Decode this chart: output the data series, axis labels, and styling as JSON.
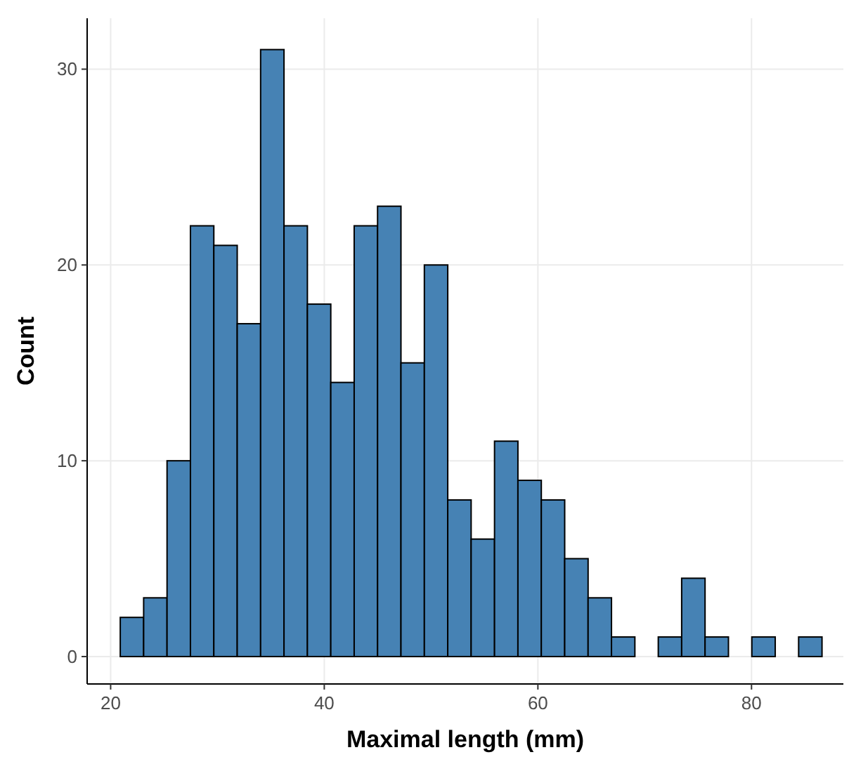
{
  "chart_data": {
    "type": "histogram",
    "xlabel": "Maximal length (mm)",
    "ylabel": "Count",
    "color": "#4682b4",
    "bins": [
      20.9,
      23.09,
      25.28,
      27.47,
      29.66,
      31.85,
      34.04,
      36.23,
      38.42,
      40.61,
      42.8,
      44.99,
      47.18,
      49.37,
      51.56,
      53.75,
      55.94,
      58.13,
      60.32,
      62.51,
      64.7,
      66.89,
      69.08,
      71.27,
      73.46,
      75.65,
      77.84,
      80.03,
      82.22,
      84.41,
      86.6
    ],
    "values": [
      2,
      3,
      10,
      22,
      21,
      17,
      31,
      22,
      18,
      14,
      22,
      23,
      15,
      20,
      8,
      6,
      11,
      9,
      8,
      5,
      3,
      1,
      0,
      1,
      4,
      1,
      0,
      1,
      0,
      1
    ],
    "xlim": [
      17.8,
      88.6
    ],
    "xticks": [
      20,
      40,
      60,
      80
    ],
    "ylim": [
      -1.4,
      32.6
    ],
    "yticks": [
      0,
      10,
      20,
      30
    ],
    "grid": true
  }
}
